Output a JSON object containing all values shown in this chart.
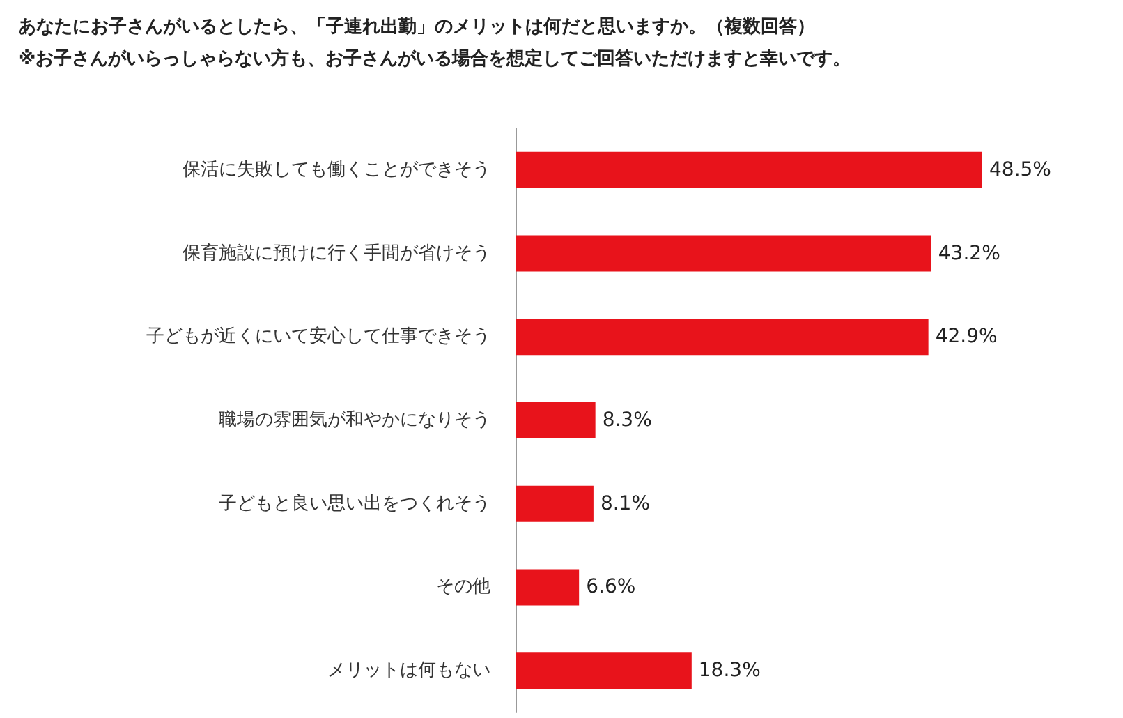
{
  "chart_data": {
    "type": "bar",
    "orientation": "horizontal",
    "title": "あなたにお子さんがいるとしたら、「子連れ出勤」のメリットは何だと思いますか。（複数回答）",
    "subtitle": "※お子さんがいらっしゃらない方も、お子さんがいる場合を想定してご回答いただけますと幸いです。",
    "categories": [
      "保活に失敗しても働くことができそう",
      "保育施設に預けに行く手間が省けそう",
      "子どもが近くにいて安心して仕事できそう",
      "職場の雰囲気が和やかになりそう",
      "子どもと良い思い出をつくれそう",
      "その他",
      "メリットは何もない"
    ],
    "values": [
      48.5,
      43.2,
      42.9,
      8.3,
      8.1,
      6.6,
      18.3
    ],
    "value_labels": [
      "48.5%",
      "43.2%",
      "42.9%",
      "8.3%",
      "8.1%",
      "6.6%",
      "18.3%"
    ],
    "color": "#e8131b",
    "grid": false
  }
}
